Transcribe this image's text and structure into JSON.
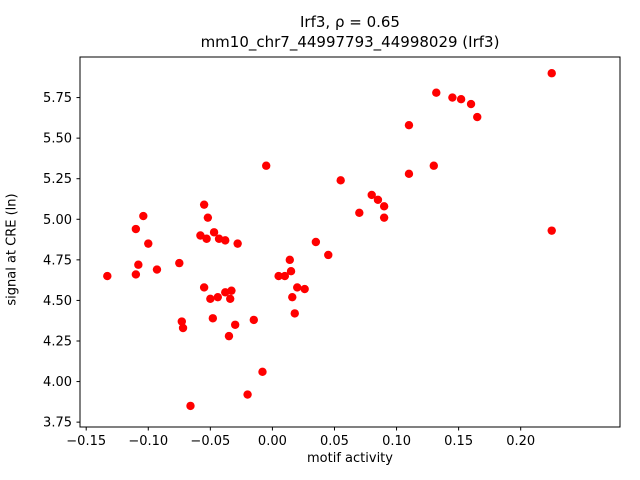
{
  "chart_data": {
    "type": "scatter",
    "title": "Irf3, ρ = 0.65",
    "subtitle": "mm10_chr7_44997793_44998029 (Irf3)",
    "xlabel": "motif activity",
    "ylabel": "signal at CRE (ln)",
    "xlim": [
      -0.155,
      0.28
    ],
    "ylim": [
      3.72,
      6.0
    ],
    "xticks": [
      -0.15,
      -0.1,
      -0.05,
      0.0,
      0.05,
      0.1,
      0.15,
      0.2
    ],
    "xtick_labels": [
      "−0.15",
      "−0.10",
      "−0.05",
      "0.00",
      "0.05",
      "0.10",
      "0.15",
      "0.20"
    ],
    "yticks": [
      3.75,
      4.0,
      4.25,
      4.5,
      4.75,
      5.0,
      5.25,
      5.5,
      5.75
    ],
    "ytick_labels": [
      "3.75",
      "4.00",
      "4.25",
      "4.50",
      "4.75",
      "5.00",
      "5.25",
      "5.50",
      "5.75"
    ],
    "marker_color": "#ff0000",
    "marker_radius": 4.2,
    "grid": false,
    "points": [
      [
        -0.133,
        4.65
      ],
      [
        -0.11,
        4.94
      ],
      [
        -0.104,
        5.02
      ],
      [
        -0.1,
        4.85
      ],
      [
        -0.108,
        4.72
      ],
      [
        -0.11,
        4.66
      ],
      [
        -0.093,
        4.69
      ],
      [
        -0.075,
        4.73
      ],
      [
        -0.073,
        4.37
      ],
      [
        -0.072,
        4.33
      ],
      [
        -0.066,
        3.85
      ],
      [
        -0.055,
        5.09
      ],
      [
        -0.052,
        5.01
      ],
      [
        -0.058,
        4.9
      ],
      [
        -0.053,
        4.88
      ],
      [
        -0.047,
        4.92
      ],
      [
        -0.043,
        4.88
      ],
      [
        -0.038,
        4.87
      ],
      [
        -0.028,
        4.85
      ],
      [
        -0.055,
        4.58
      ],
      [
        -0.05,
        4.51
      ],
      [
        -0.044,
        4.52
      ],
      [
        -0.038,
        4.55
      ],
      [
        -0.033,
        4.56
      ],
      [
        -0.034,
        4.51
      ],
      [
        -0.048,
        4.39
      ],
      [
        -0.035,
        4.28
      ],
      [
        -0.03,
        4.35
      ],
      [
        -0.02,
        3.92
      ],
      [
        -0.015,
        4.38
      ],
      [
        -0.008,
        4.06
      ],
      [
        -0.005,
        5.33
      ],
      [
        0.005,
        4.65
      ],
      [
        0.01,
        4.65
      ],
      [
        0.014,
        4.75
      ],
      [
        0.015,
        4.68
      ],
      [
        0.02,
        4.58
      ],
      [
        0.016,
        4.52
      ],
      [
        0.018,
        4.42
      ],
      [
        0.026,
        4.57
      ],
      [
        0.035,
        4.86
      ],
      [
        0.045,
        4.78
      ],
      [
        0.055,
        5.24
      ],
      [
        0.07,
        5.04
      ],
      [
        0.08,
        5.15
      ],
      [
        0.085,
        5.12
      ],
      [
        0.09,
        5.08
      ],
      [
        0.09,
        5.01
      ],
      [
        0.11,
        5.58
      ],
      [
        0.11,
        5.28
      ],
      [
        0.13,
        5.33
      ],
      [
        0.132,
        5.78
      ],
      [
        0.145,
        5.75
      ],
      [
        0.152,
        5.74
      ],
      [
        0.16,
        5.71
      ],
      [
        0.165,
        5.63
      ],
      [
        0.225,
        5.9
      ],
      [
        0.225,
        4.93
      ]
    ]
  }
}
